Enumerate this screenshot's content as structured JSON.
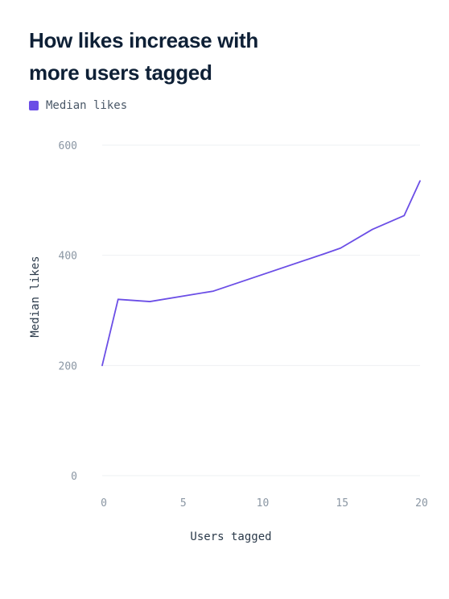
{
  "title": "How likes increase with more users tagged",
  "legend": {
    "label": "Median likes"
  },
  "colors": {
    "series": "#6b4ee6",
    "grid": "#eef0f3",
    "title": "#0e2036"
  },
  "chart_data": {
    "type": "line",
    "title": "How likes increase with more users tagged",
    "xlabel": "Users tagged",
    "ylabel": "Median likes",
    "xlim": [
      0,
      20
    ],
    "ylim": [
      0,
      600
    ],
    "xticks": [
      0,
      5,
      10,
      15,
      20
    ],
    "yticks": [
      0,
      200,
      400,
      600
    ],
    "grid": "horizontal",
    "legend_position": "top-left",
    "series": [
      {
        "name": "Median likes",
        "x": [
          0,
          1,
          3,
          7,
          14,
          15,
          17,
          19,
          20
        ],
        "y": [
          200,
          320,
          316,
          335,
          403,
          413,
          447,
          472,
          535
        ]
      }
    ]
  }
}
